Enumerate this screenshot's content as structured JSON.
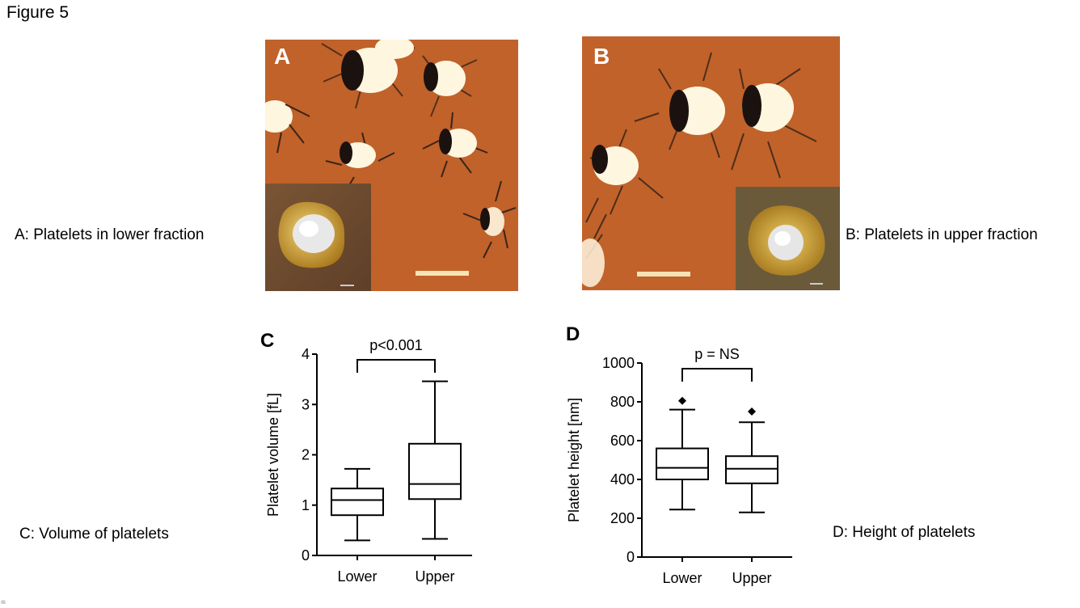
{
  "figure_title": "Figure 5",
  "captions": {
    "a": "A: Platelets in lower fraction",
    "b": "B: Platelets in upper fraction",
    "c": "C: Volume of platelets",
    "d": "D: Height of platelets"
  },
  "panels": {
    "a": {
      "letter": "A"
    },
    "b": {
      "letter": "B"
    }
  },
  "colors": {
    "afm_background": "#c0622a",
    "platelet_bright": "#fff6e0",
    "platelet_shadow": "#1b1210",
    "inset_background": "#6e4a30",
    "inset_yellow": "#d2a52a",
    "scale_bar": "#f7e3b5"
  },
  "chart_data": [
    {
      "type": "box",
      "panel": "C",
      "categories": [
        "Lower",
        "Upper"
      ],
      "ylabel": "Platelet volume [fL]",
      "ylim": [
        0,
        4
      ],
      "yticks": [
        0,
        1,
        2,
        3,
        4
      ],
      "boxes": [
        {
          "category": "Lower",
          "min": 0.3,
          "q1": 0.8,
          "median": 1.1,
          "q3": 1.33,
          "max": 1.72,
          "outliers": []
        },
        {
          "category": "Upper",
          "min": 0.33,
          "q1": 1.12,
          "median": 1.42,
          "q3": 2.22,
          "max": 3.46,
          "outliers": []
        }
      ],
      "significance": {
        "label": "p<0.001",
        "between": [
          "Lower",
          "Upper"
        ]
      }
    },
    {
      "type": "box",
      "panel": "D",
      "categories": [
        "Lower",
        "Upper"
      ],
      "ylabel": "Platelet height [nm]",
      "ylim": [
        0,
        1000
      ],
      "yticks": [
        0,
        200,
        400,
        600,
        800,
        1000
      ],
      "boxes": [
        {
          "category": "Lower",
          "min": 245,
          "q1": 400,
          "median": 460,
          "q3": 560,
          "max": 760,
          "outliers": [
            805
          ]
        },
        {
          "category": "Upper",
          "min": 230,
          "q1": 380,
          "median": 455,
          "q3": 520,
          "max": 695,
          "outliers": [
            750
          ]
        }
      ],
      "significance": {
        "label": "p = NS",
        "between": [
          "Lower",
          "Upper"
        ]
      }
    }
  ]
}
